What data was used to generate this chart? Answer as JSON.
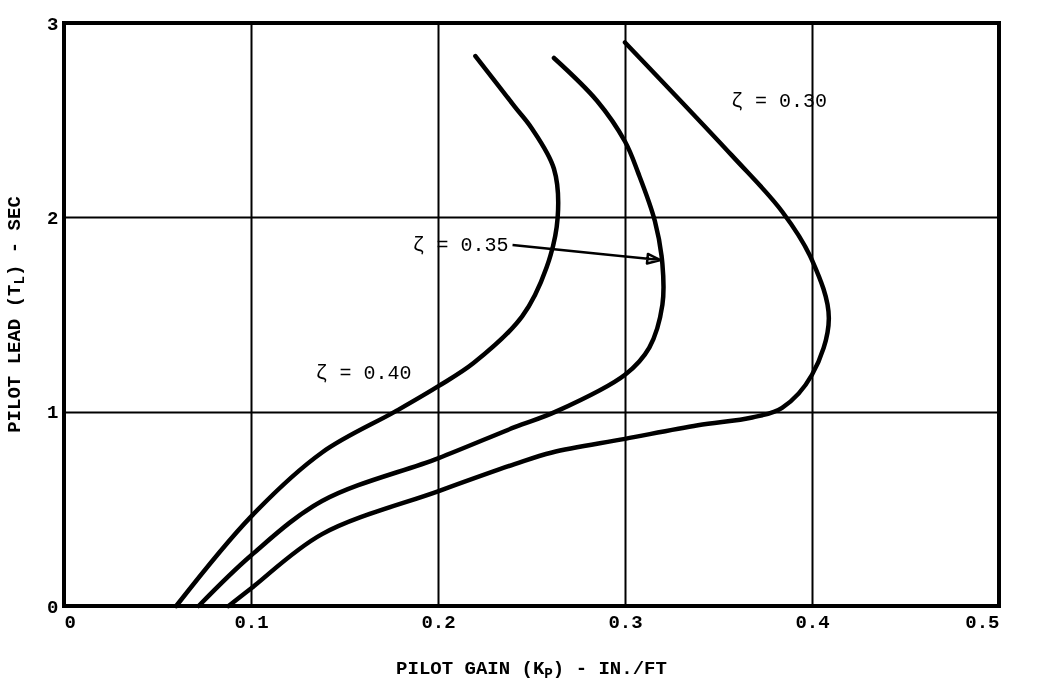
{
  "chart_data": {
    "type": "line",
    "xlabel": "PILOT GAIN (K$_{P}$) - IN./FT",
    "ylabel": "PILOT LEAD (T$_{L}$) - SEC",
    "series": [
      {
        "color": "#000000",
        "x": [
          0.06,
          0.1,
          0.138,
          0.177,
          0.2,
          0.219,
          0.245,
          0.258,
          0.264,
          0.262,
          0.25,
          0.241,
          0.22
        ],
        "values": [
          0,
          0.46,
          0.79,
          1.0,
          1.13,
          1.25,
          1.49,
          1.74,
          2.0,
          2.25,
          2.46,
          2.57,
          2.83
        ]
      },
      {
        "color": "#000000",
        "x": [
          0.072,
          0.1,
          0.138,
          0.2,
          0.241,
          0.263,
          0.3,
          0.313,
          0.32,
          0.32,
          0.316,
          0.307,
          0.3,
          0.285,
          0.262
        ],
        "values": [
          0,
          0.26,
          0.54,
          0.76,
          0.92,
          1.0,
          1.19,
          1.33,
          1.55,
          1.76,
          1.98,
          2.23,
          2.39,
          2.6,
          2.82
        ]
      },
      {
        "color": "#000000",
        "x": [
          0.088,
          0.1,
          0.138,
          0.2,
          0.241,
          0.261,
          0.3,
          0.339,
          0.368,
          0.384,
          0.4,
          0.409,
          0.4,
          0.384,
          0.357,
          0.3
        ],
        "values": [
          0,
          0.09,
          0.37,
          0.59,
          0.73,
          0.79,
          0.86,
          0.93,
          0.97,
          1.02,
          1.19,
          1.48,
          1.78,
          2.03,
          2.32,
          2.9
        ]
      }
    ],
    "annotations": [
      {
        "text": "ζ = 0.30",
        "x": 0.33,
        "y": 2.6
      },
      {
        "text": "ζ = 0.35",
        "x": 0.319,
        "y": 1.78
      },
      {
        "text": "ζ = 0.40",
        "x": 0.211,
        "y": 1.2
      }
    ],
    "xlim": [
      0,
      0.5
    ],
    "xticks": [
      0,
      0.1,
      0.2,
      0.3,
      0.4,
      0.5
    ],
    "ylim": [
      0,
      3
    ],
    "yticks": [
      0,
      1,
      2,
      3
    ],
    "grid": true,
    "marker": "none",
    "line_style": "solid"
  }
}
